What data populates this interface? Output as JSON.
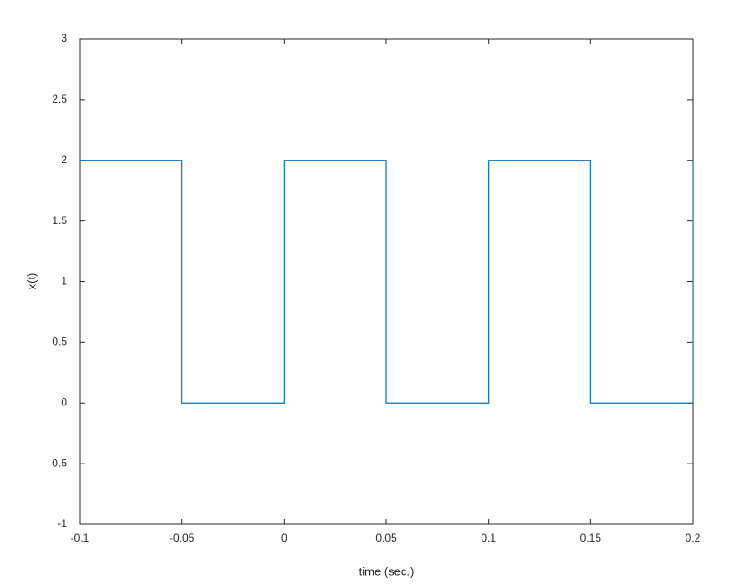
{
  "chart_data": {
    "type": "line",
    "x_label": "time (sec.)",
    "y_label": "x(t)",
    "x": [
      -0.1,
      -0.05,
      -0.05,
      0,
      0,
      0.05,
      0.05,
      0.1,
      0.1,
      0.15,
      0.15,
      0.2,
      0.2
    ],
    "series": [
      {
        "color": "#0072bd",
        "values": [
          2,
          2,
          0,
          0,
          2,
          2,
          0,
          0,
          2,
          2,
          0,
          0,
          2
        ]
      }
    ],
    "xlim": [
      -0.1,
      0.2
    ],
    "xticks": [
      -0.1,
      -0.05,
      0,
      0.05,
      0.1,
      0.15,
      0.2
    ],
    "ylim": [
      -1,
      3
    ],
    "yticks": [
      -1,
      -0.5,
      0,
      0.5,
      1,
      1.5,
      2,
      2.5,
      3
    ],
    "grid": false
  }
}
